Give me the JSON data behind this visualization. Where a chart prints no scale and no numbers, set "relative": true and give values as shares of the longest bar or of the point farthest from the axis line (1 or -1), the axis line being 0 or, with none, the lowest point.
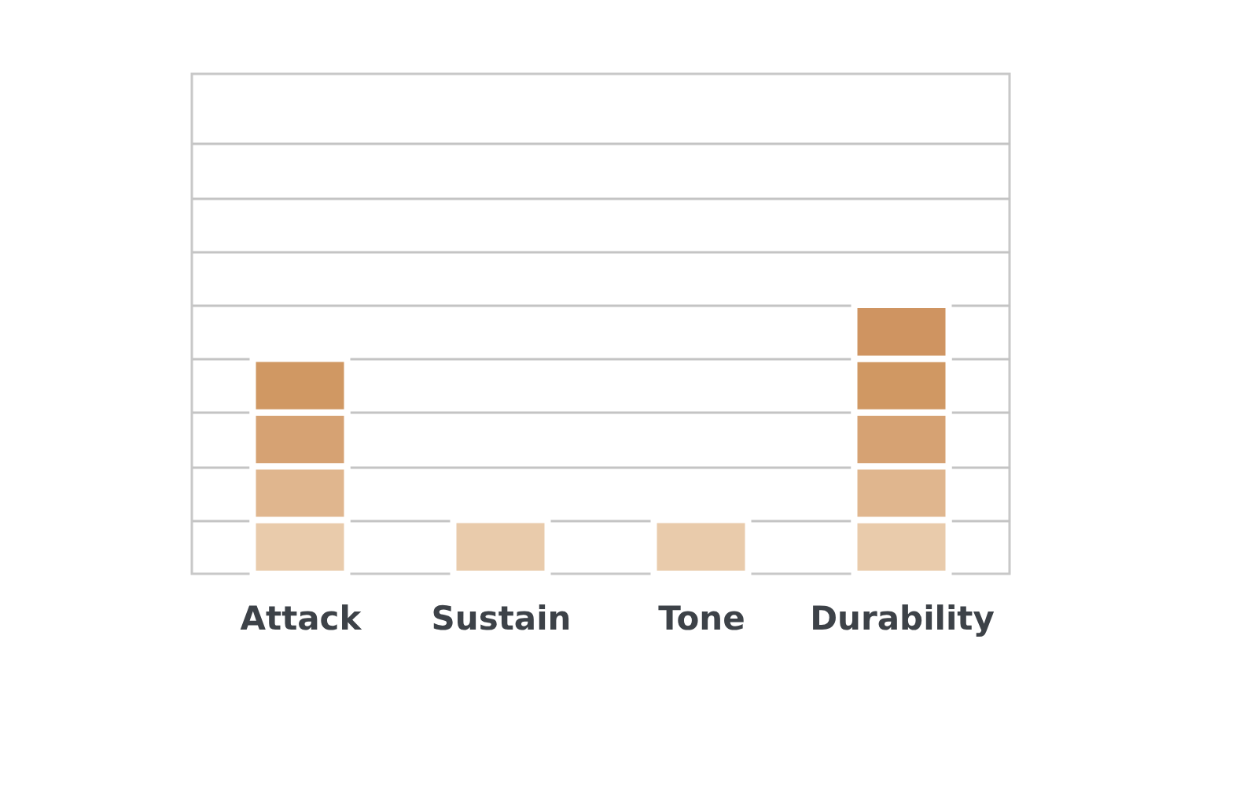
{
  "chart_data": {
    "type": "bar",
    "stacked": true,
    "relative": true,
    "grid": "y",
    "categories": [
      "Attack",
      "Sustain",
      "Tone",
      "Durability"
    ],
    "series": [
      {
        "color": "#e9cbab",
        "values": [
          0.2,
          0.2,
          0.2,
          0.2
        ]
      },
      {
        "color": "#e0b68e",
        "values": [
          0.2,
          null,
          null,
          0.2
        ]
      },
      {
        "color": "#d6a273",
        "values": [
          0.2,
          null,
          null,
          0.2
        ]
      },
      {
        "color": "#d09863",
        "values": [
          0.2,
          null,
          null,
          0.2
        ]
      },
      {
        "color": "#cf9461",
        "values": [
          null,
          null,
          null,
          0.2
        ]
      }
    ]
  }
}
